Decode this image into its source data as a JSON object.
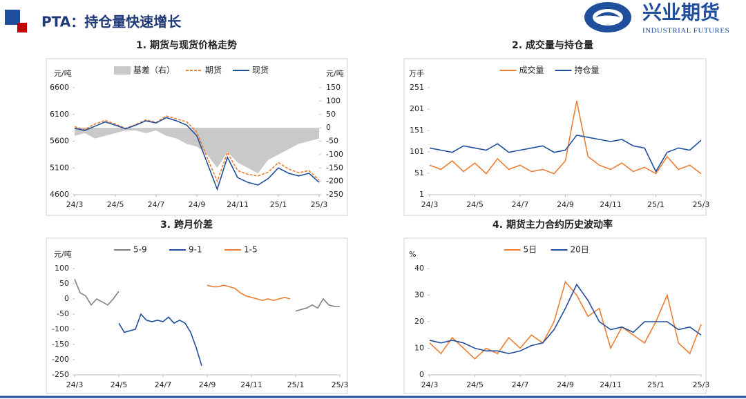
{
  "header": {
    "title": "PTA：持仓量快速增长",
    "logo": "兴业期货",
    "logo_sub": "INDUSTRIAL FUTURES"
  },
  "chart_data": [
    {
      "type": "line",
      "title": "1. 期货与现货价格走势",
      "ylabel": "元/吨",
      "y2label": "元/吨",
      "x": [
        0,
        0.5,
        1,
        1.5,
        2,
        2.5,
        3,
        3.5,
        4,
        4.5,
        5,
        5.5,
        6,
        6.5,
        7,
        7.5,
        8,
        8.5,
        9,
        9.5,
        10,
        10.5,
        11,
        11.5,
        12
      ],
      "xlim": [
        0,
        12
      ],
      "xticks": [
        {
          "value": 0,
          "label": "24/3"
        },
        {
          "value": 2,
          "label": "24/5"
        },
        {
          "value": 4,
          "label": "24/7"
        },
        {
          "value": 6,
          "label": "24/9"
        },
        {
          "value": 8,
          "label": "24/11"
        },
        {
          "value": 10,
          "label": "25/1"
        },
        {
          "value": 12,
          "label": "25/3"
        }
      ],
      "ylim": [
        4600,
        6600
      ],
      "yticks": [
        4600,
        5100,
        5600,
        6100,
        6600
      ],
      "y2lim": [
        -250,
        150
      ],
      "y2ticks": [
        -250,
        -200,
        -150,
        -100,
        -50,
        0,
        50,
        100,
        150
      ],
      "series": [
        {
          "name": "基差（右）",
          "color": "#c9c9c9",
          "style": "area",
          "axis": "y2",
          "values": [
            -30,
            -20,
            -40,
            -30,
            -20,
            -10,
            -10,
            -20,
            -10,
            -30,
            -40,
            -60,
            -70,
            -100,
            -150,
            -90,
            -130,
            -150,
            -170,
            -120,
            -100,
            -80,
            -60,
            -50,
            -40
          ]
        },
        {
          "name": "期货",
          "color": "#ed7d31",
          "style": "dashed",
          "values": [
            5870,
            5820,
            5920,
            5990,
            5920,
            5840,
            5910,
            6000,
            5950,
            6070,
            6020,
            5960,
            5770,
            5300,
            4850,
            5390,
            5050,
            4980,
            4950,
            5020,
            5200,
            5080,
            5010,
            5050,
            4870
          ]
        },
        {
          "name": "现货",
          "color": "#1f4e9c",
          "style": "solid",
          "values": [
            5840,
            5800,
            5880,
            5960,
            5900,
            5830,
            5900,
            5980,
            5940,
            6040,
            5980,
            5900,
            5700,
            5200,
            4700,
            5300,
            4920,
            4830,
            4780,
            4900,
            5100,
            5000,
            4950,
            5000,
            4830
          ]
        }
      ]
    },
    {
      "type": "line",
      "title": "2. 成交量与持仓量",
      "ylabel": "万手",
      "x": [
        0,
        0.5,
        1,
        1.5,
        2,
        2.5,
        3,
        3.5,
        4,
        4.5,
        5,
        5.5,
        6,
        6.5,
        7,
        7.5,
        8,
        8.5,
        9,
        9.5,
        10,
        10.5,
        11,
        11.5,
        12
      ],
      "xlim": [
        0,
        12
      ],
      "xticks": [
        {
          "value": 0,
          "label": "24/3"
        },
        {
          "value": 2,
          "label": "24/5"
        },
        {
          "value": 4,
          "label": "24/7"
        },
        {
          "value": 6,
          "label": "24/9"
        },
        {
          "value": 8,
          "label": "24/11"
        },
        {
          "value": 10,
          "label": "25/1"
        },
        {
          "value": 12,
          "label": "25/3"
        }
      ],
      "ylim": [
        1,
        251
      ],
      "yticks": [
        1,
        51,
        101,
        151,
        201,
        251
      ],
      "series": [
        {
          "name": "成交量",
          "color": "#ed7d31",
          "style": "solid",
          "values": [
            70,
            60,
            80,
            55,
            75,
            50,
            85,
            60,
            70,
            55,
            60,
            50,
            80,
            220,
            90,
            70,
            60,
            75,
            55,
            65,
            50,
            90,
            60,
            70,
            50
          ]
        },
        {
          "name": "持仓量",
          "color": "#1f4e9c",
          "style": "solid",
          "values": [
            110,
            105,
            100,
            115,
            110,
            105,
            120,
            100,
            105,
            110,
            115,
            100,
            105,
            140,
            135,
            130,
            125,
            130,
            115,
            110,
            55,
            100,
            110,
            105,
            128
          ]
        }
      ]
    },
    {
      "type": "line",
      "title": "3. 跨月价差",
      "ylabel": "元/吨",
      "x": [
        0,
        0.25,
        0.5,
        0.75,
        1,
        1.25,
        1.5,
        1.75,
        2,
        2.25,
        2.5,
        2.75,
        3,
        3.25,
        3.5,
        3.75,
        4,
        4.25,
        4.5,
        4.75,
        5,
        5.25,
        5.5,
        5.75,
        6,
        6.25,
        6.5,
        6.75,
        7,
        7.25,
        7.5,
        7.75,
        8,
        8.25,
        8.5,
        8.75,
        9,
        9.25,
        9.5,
        9.75,
        10,
        10.25,
        10.5,
        10.75,
        11,
        11.25,
        11.5,
        11.75,
        12
      ],
      "xlim": [
        0,
        12
      ],
      "xticks": [
        {
          "value": 0,
          "label": "24/3"
        },
        {
          "value": 2,
          "label": "24/5"
        },
        {
          "value": 4,
          "label": "24/7"
        },
        {
          "value": 6,
          "label": "24/9"
        },
        {
          "value": 8,
          "label": "24/11"
        },
        {
          "value": 10,
          "label": "25/1"
        },
        {
          "value": 12,
          "label": "25/3"
        }
      ],
      "ylim": [
        -250,
        100
      ],
      "yticks": [
        -250,
        -200,
        -150,
        -100,
        -50,
        0,
        50,
        100
      ],
      "series": [
        {
          "name": "5-9",
          "color": "#7f7f7f",
          "style": "solid",
          "values": [
            65,
            20,
            10,
            -20,
            0,
            -10,
            -20,
            0,
            25,
            null,
            null,
            null,
            null,
            null,
            null,
            null,
            null,
            null,
            null,
            null,
            null,
            null,
            null,
            null,
            null,
            null,
            null,
            null,
            null,
            null,
            null,
            null,
            null,
            null,
            null,
            null,
            null,
            null,
            null,
            null,
            -40,
            -35,
            -30,
            -20,
            -30,
            0,
            -20,
            -25,
            -25
          ]
        },
        {
          "name": "9-1",
          "color": "#1f4e9c",
          "style": "solid",
          "values": [
            null,
            null,
            null,
            null,
            null,
            null,
            null,
            null,
            -80,
            -110,
            -105,
            -100,
            -50,
            -70,
            -75,
            -70,
            -75,
            -60,
            -80,
            -70,
            -80,
            -110,
            -160,
            -220,
            null,
            null,
            null,
            null,
            null,
            null,
            null,
            null,
            null,
            null,
            null,
            null,
            null,
            null,
            null,
            null,
            null,
            null,
            null,
            null,
            null,
            null,
            null,
            null,
            null
          ]
        },
        {
          "name": "1-5",
          "color": "#ed7d31",
          "style": "solid",
          "values": [
            null,
            null,
            null,
            null,
            null,
            null,
            null,
            null,
            null,
            null,
            null,
            null,
            null,
            null,
            null,
            null,
            null,
            null,
            null,
            null,
            null,
            null,
            null,
            null,
            45,
            40,
            40,
            45,
            40,
            35,
            20,
            10,
            5,
            0,
            -5,
            0,
            -5,
            0,
            5,
            0,
            null,
            null,
            null,
            null,
            null,
            null,
            null,
            null,
            null
          ]
        }
      ]
    },
    {
      "type": "line",
      "title": "4. 期货主力合约历史波动率",
      "ylabel": "%",
      "x": [
        0,
        0.5,
        1,
        1.5,
        2,
        2.5,
        3,
        3.5,
        4,
        4.5,
        5,
        5.5,
        6,
        6.5,
        7,
        7.5,
        8,
        8.5,
        9,
        9.5,
        10,
        10.5,
        11,
        11.5,
        12
      ],
      "xlim": [
        0,
        12
      ],
      "xticks": [
        {
          "value": 0,
          "label": "24/3"
        },
        {
          "value": 2,
          "label": "24/5"
        },
        {
          "value": 4,
          "label": "24/7"
        },
        {
          "value": 6,
          "label": "24/9"
        },
        {
          "value": 8,
          "label": "24/11"
        },
        {
          "value": 10,
          "label": "25/1"
        },
        {
          "value": 12,
          "label": "25/3"
        }
      ],
      "ylim": [
        0,
        40
      ],
      "yticks": [
        0,
        10,
        20,
        30,
        40
      ],
      "series": [
        {
          "name": "5日",
          "color": "#ed7d31",
          "style": "solid",
          "values": [
            12,
            8,
            14,
            10,
            6,
            10,
            8,
            14,
            10,
            15,
            12,
            20,
            35,
            30,
            22,
            25,
            10,
            18,
            15,
            12,
            20,
            30,
            12,
            8,
            19
          ]
        },
        {
          "name": "20日",
          "color": "#1f4e9c",
          "style": "solid",
          "values": [
            13,
            12,
            13,
            12,
            10,
            9,
            9,
            8,
            9,
            11,
            12,
            17,
            25,
            34,
            28,
            20,
            17,
            18,
            16,
            20,
            20,
            20,
            17,
            18,
            15
          ]
        }
      ]
    }
  ]
}
